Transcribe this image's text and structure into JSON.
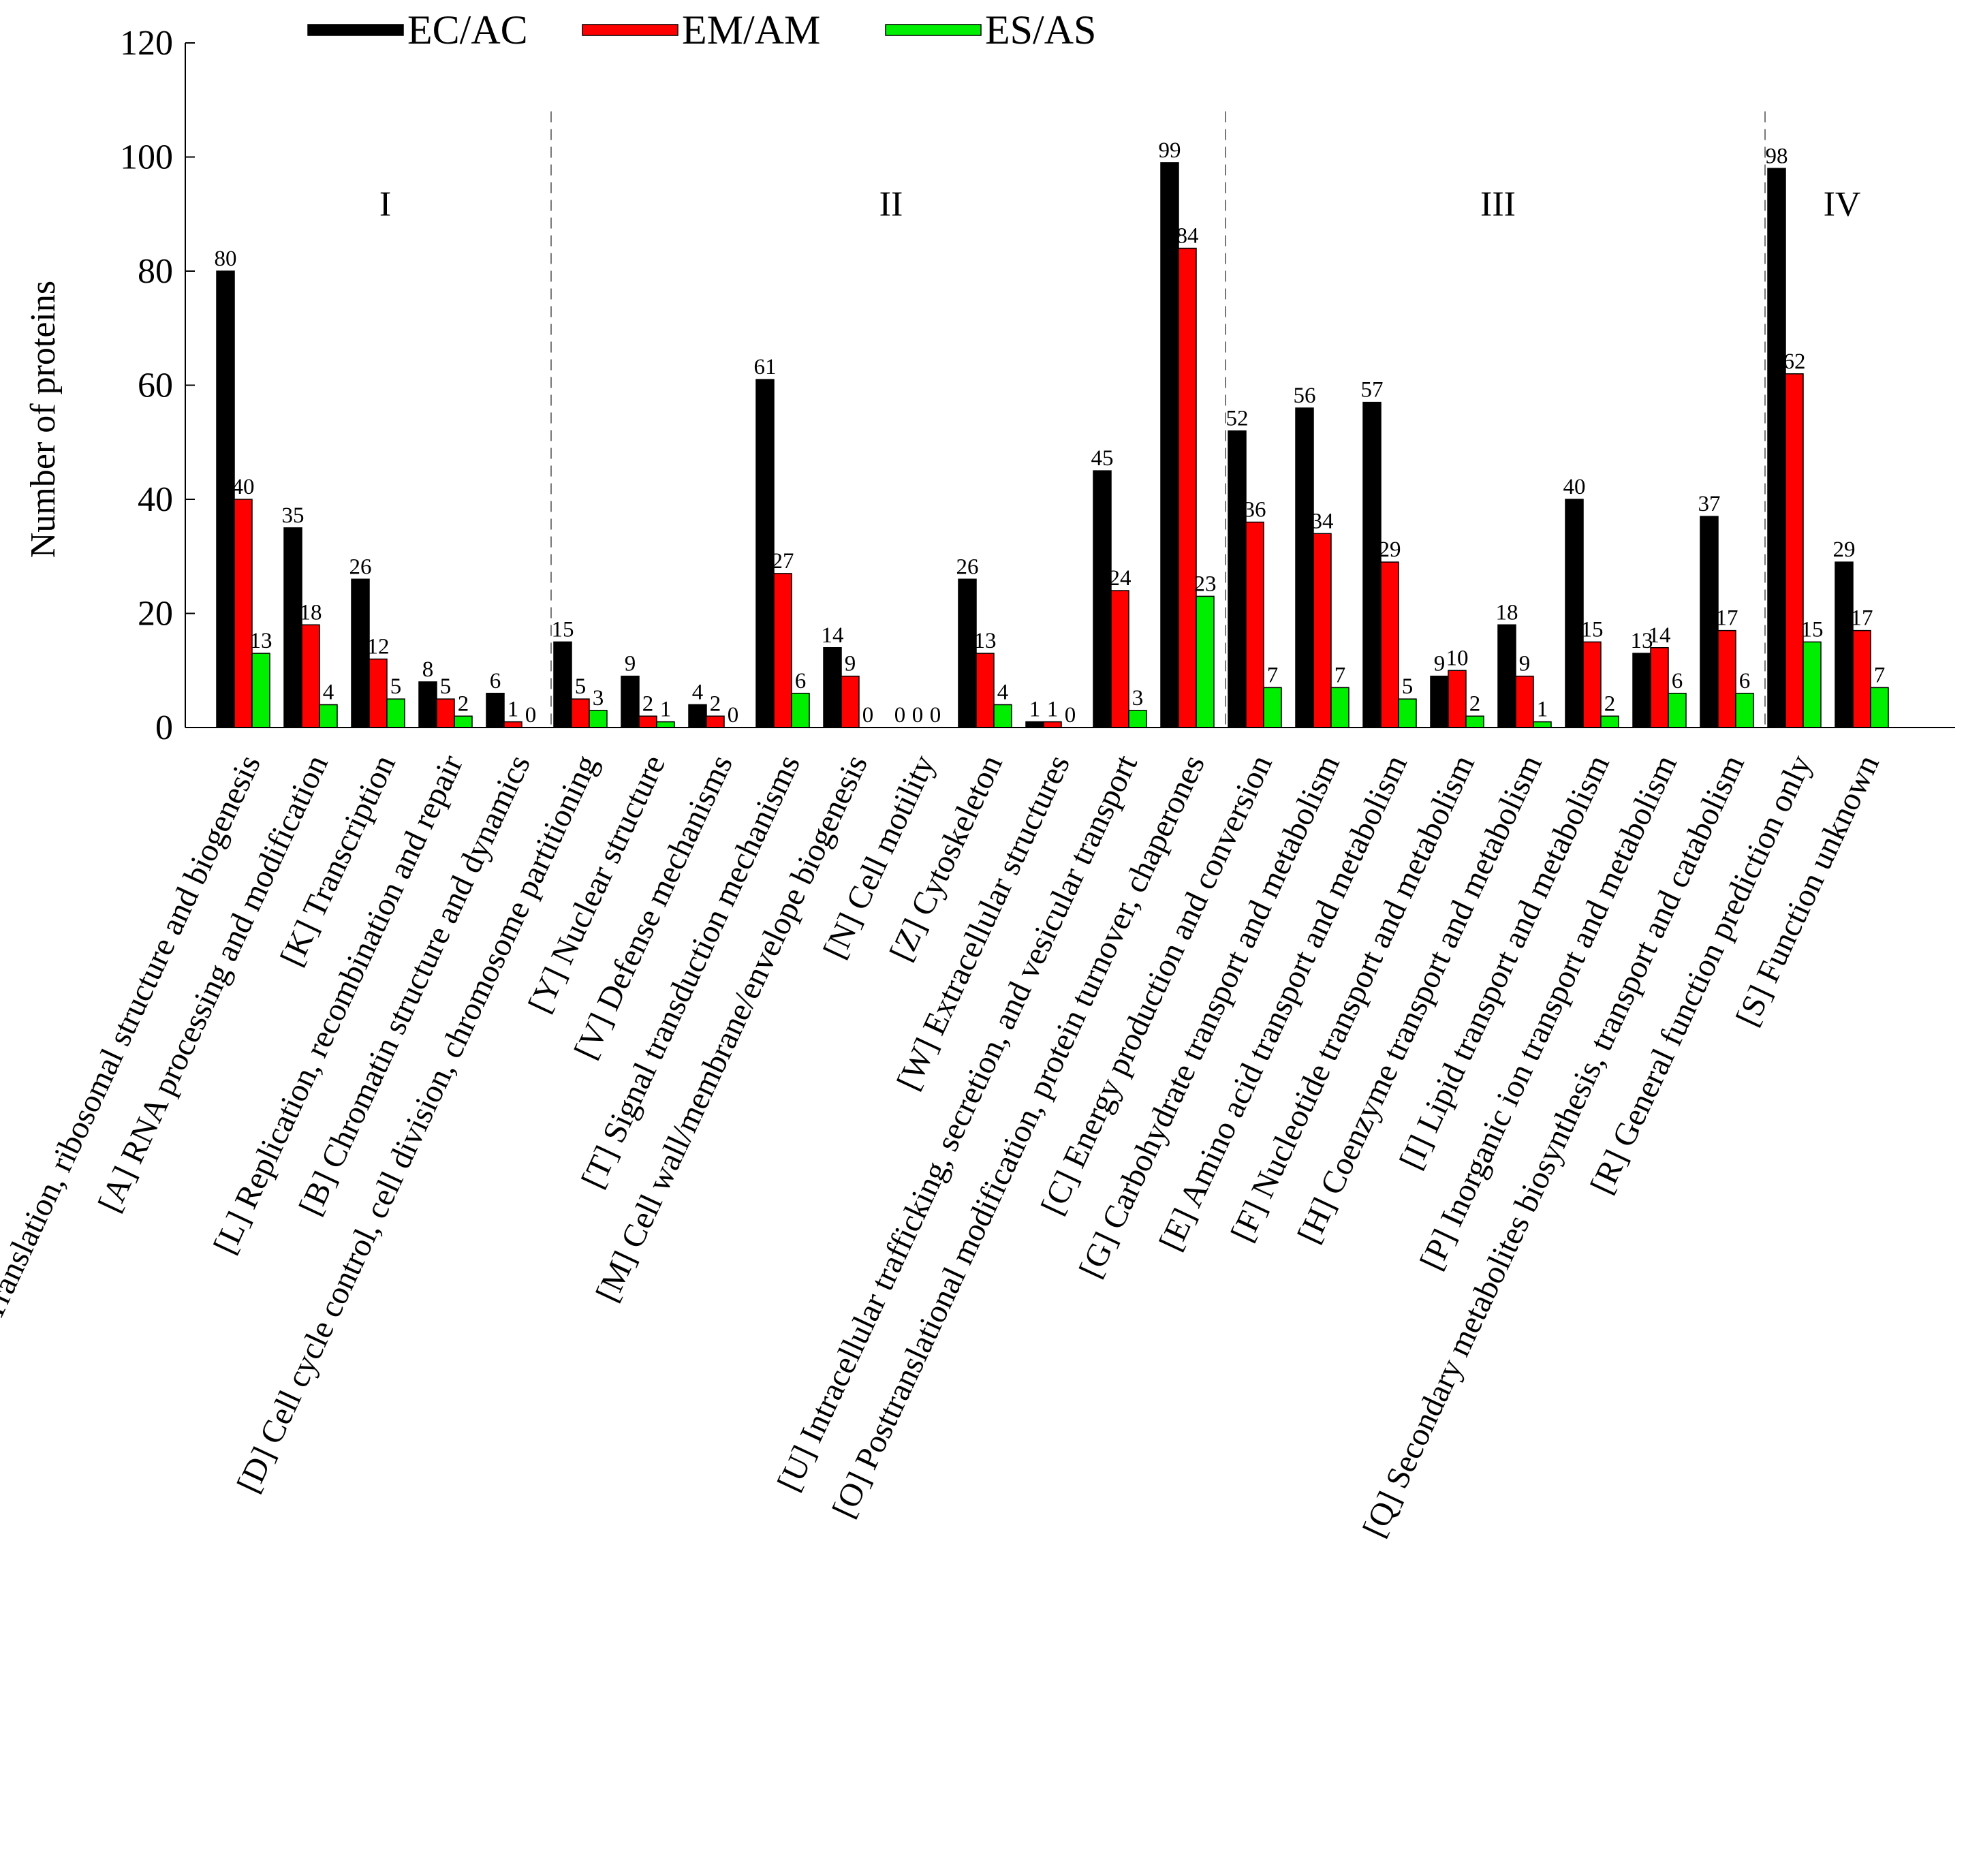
{
  "chart_data": {
    "type": "bar",
    "title": "",
    "xlabel": "",
    "ylabel": "Number of proteins",
    "ylim": [
      0,
      120
    ],
    "yticks": [
      0,
      20,
      40,
      60,
      80,
      100,
      120
    ],
    "legend_position": "top",
    "grid": false,
    "categories": [
      "[J] Translation, ribosomal structure and biogenesis",
      "[A] RNA processing and modification",
      "[K] Transcription",
      "[L] Replication, recombination and repair",
      "[B] Chromatin structure and dynamics",
      "[D] Cell cycle control, cell division, chromosome partitioning",
      "[Y] Nuclear structure",
      "[V] Defense mechanisms",
      "[T] Signal transduction mechanisms",
      "[M] Cell wall/membrane/envelope biogenesis",
      "[N] Cell motility",
      "[Z] Cytoskeleton",
      "[W] Extracellular structures",
      "[U] Intracellular trafficking, secretion, and vesicular transport",
      "[O] Posttranslational modification, protein turnover, chaperones",
      "[C] Energy production and conversion",
      "[G] Carbohydrate transport and metabolism",
      "[E] Amino acid transport and metabolism",
      "[F] Nucleotide transport and metabolism",
      "[H] Coenzyme transport and metabolism",
      "[I] Lipid transport and metabolism",
      "[P] Inorganic ion transport and metabolism",
      "[Q] Secondary metabolites biosynthesis, transport and catabolism",
      "[R] General function prediction only",
      "[S] Function unknown"
    ],
    "series": [
      {
        "name": "EC/AC",
        "color": "#000000",
        "values": [
          80,
          35,
          26,
          8,
          6,
          15,
          9,
          4,
          61,
          14,
          0,
          26,
          1,
          45,
          99,
          52,
          56,
          57,
          9,
          18,
          40,
          13,
          37,
          98,
          29
        ]
      },
      {
        "name": "EM/AM",
        "color": "#ff0000",
        "values": [
          40,
          18,
          12,
          5,
          1,
          5,
          2,
          2,
          27,
          9,
          0,
          13,
          1,
          24,
          84,
          36,
          34,
          29,
          10,
          9,
          15,
          14,
          17,
          62,
          17
        ]
      },
      {
        "name": "ES/AS",
        "color": "#00ee00",
        "values": [
          13,
          4,
          5,
          2,
          0,
          3,
          1,
          0,
          6,
          0,
          0,
          4,
          0,
          3,
          23,
          7,
          7,
          5,
          2,
          1,
          2,
          6,
          6,
          15,
          7
        ]
      }
    ],
    "groups": [
      {
        "label": "I",
        "start": 0,
        "end": 4
      },
      {
        "label": "II",
        "start": 5,
        "end": 14
      },
      {
        "label": "III",
        "start": 15,
        "end": 22
      },
      {
        "label": "IV",
        "start": 23,
        "end": 24
      }
    ]
  }
}
